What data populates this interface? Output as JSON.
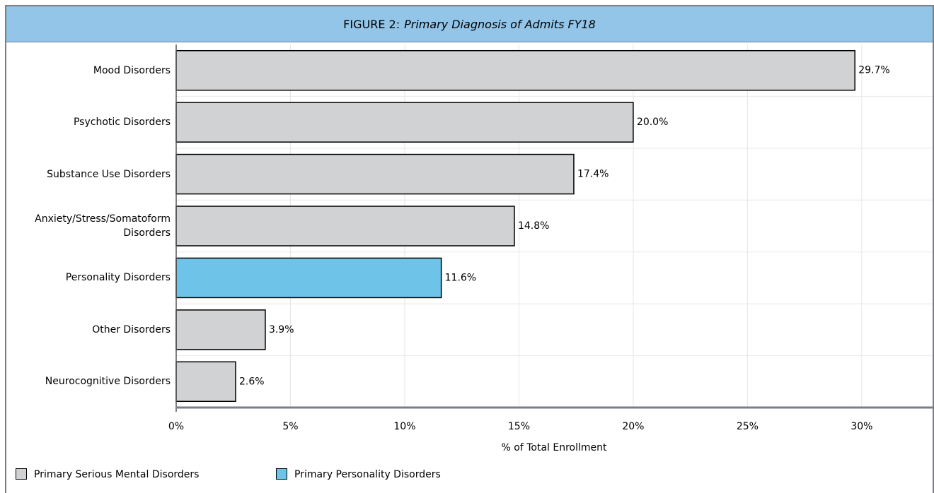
{
  "chart_data": {
    "type": "hbar",
    "figure_label": "FIGURE 2:",
    "title": "Primary Diagnosis of Admits FY18",
    "xlabel": "% of Total Enrollment",
    "categories": [
      "Mood Disorders",
      "Psychotic Disorders",
      "Substance Use Disorders",
      "Anxiety/Stress/Somatoform Disorders",
      "Personality Disorders",
      "Other Disorders",
      "Neurocognitive Disorders"
    ],
    "values": [
      29.7,
      20.0,
      17.4,
      14.8,
      11.6,
      3.9,
      2.6
    ],
    "value_labels": [
      "29.7%",
      "20.0%",
      "17.4%",
      "14.8%",
      "11.6%",
      "3.9%",
      "2.6%"
    ],
    "colors": [
      "#d1d2d4",
      "#d1d2d4",
      "#d1d2d4",
      "#d1d2d4",
      "#6ec3e8",
      "#d1d2d4",
      "#d1d2d4"
    ],
    "xlim": [
      0,
      33.1
    ],
    "xticks": [
      {
        "value": 0,
        "label": "0%"
      },
      {
        "value": 5,
        "label": "5%"
      },
      {
        "value": 10,
        "label": "10%"
      },
      {
        "value": 15,
        "label": "15%"
      },
      {
        "value": 20,
        "label": "20%"
      },
      {
        "value": 25,
        "label": "25%"
      },
      {
        "value": 30,
        "label": "30%"
      }
    ],
    "grid": true,
    "legend": [
      {
        "name": "Primary Serious Mental Disorders",
        "color": "#d1d2d4"
      },
      {
        "name": "Primary Personality Disorders",
        "color": "#6ec3e8"
      }
    ]
  }
}
